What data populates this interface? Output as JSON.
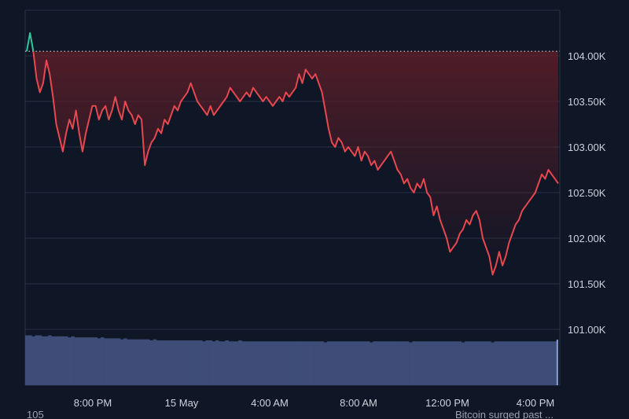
{
  "chart_data": {
    "type": "area",
    "title": "",
    "xlabel": "",
    "ylabel": "",
    "x_ticks": [
      "8:00 PM",
      "15 May",
      "4:00 AM",
      "8:00 AM",
      "12:00 PM",
      "4:00 PM"
    ],
    "y_ticks": [
      "101.00K",
      "101.50K",
      "102.00K",
      "102.50K",
      "103.00K",
      "103.50K",
      "104.00K"
    ],
    "ylim": [
      100500,
      104500
    ],
    "baseline": 104050,
    "series": [
      {
        "values": [
          104050,
          104250,
          104050,
          103750,
          103600,
          103700,
          103950,
          103800,
          103550,
          103250,
          103100,
          102950,
          103150,
          103300,
          103200,
          103400,
          103150,
          102950,
          103150,
          103300,
          103450,
          103450,
          103300,
          103400,
          103450,
          103300,
          103400,
          103550,
          103400,
          103300,
          103500,
          103400,
          103350,
          103250,
          103350,
          103300,
          102800,
          102950,
          103050,
          103100,
          103200,
          103150,
          103300,
          103250,
          103350,
          103450,
          103400,
          103500,
          103550,
          103600,
          103700,
          103600,
          103500,
          103450,
          103400,
          103350,
          103450,
          103350,
          103400,
          103450,
          103500,
          103550,
          103650,
          103600,
          103550,
          103500,
          103550,
          103600,
          103550,
          103650,
          103600,
          103550,
          103500,
          103550,
          103500,
          103450,
          103500,
          103550,
          103500,
          103600,
          103550,
          103600,
          103650,
          103800,
          103700,
          103850,
          103800,
          103750,
          103800,
          103700,
          103600,
          103400,
          103200,
          103050,
          103000,
          103100,
          103050,
          102950,
          103000,
          102950,
          102900,
          103000,
          102850,
          102950,
          102900,
          102800,
          102850,
          102750,
          102800,
          102850,
          102900,
          102950,
          102850,
          102750,
          102700,
          102600,
          102650,
          102550,
          102500,
          102600,
          102550,
          102650,
          102500,
          102450,
          102250,
          102350,
          102200,
          102100,
          102000,
          101850,
          101900,
          101950,
          102050,
          102100,
          102200,
          102150,
          102250,
          102300,
          102200,
          102000,
          101900,
          101800,
          101600,
          101700,
          101850,
          101700,
          101800,
          101950,
          102050,
          102150,
          102200,
          102300,
          102350,
          102400,
          102450,
          102500,
          102600,
          102700,
          102650,
          102750,
          102700,
          102650,
          102600
        ]
      }
    ],
    "volume": [
      0.48,
      0.48,
      0.47,
      0.48,
      0.48,
      0.47,
      0.47,
      0.48,
      0.47,
      0.47,
      0.47,
      0.47,
      0.47,
      0.46,
      0.47,
      0.46,
      0.46,
      0.46,
      0.46,
      0.46,
      0.46,
      0.46,
      0.45,
      0.46,
      0.45,
      0.45,
      0.45,
      0.45,
      0.45,
      0.44,
      0.45,
      0.44,
      0.44,
      0.44,
      0.44,
      0.44,
      0.44,
      0.44,
      0.43,
      0.44,
      0.43,
      0.43,
      0.43,
      0.43,
      0.43,
      0.43,
      0.43,
      0.43,
      0.43,
      0.43,
      0.43,
      0.43,
      0.43,
      0.43,
      0.42,
      0.43,
      0.43,
      0.42,
      0.43,
      0.42,
      0.42,
      0.43,
      0.42,
      0.42,
      0.42,
      0.43,
      0.42,
      0.42,
      0.42,
      0.42,
      0.42,
      0.42,
      0.42,
      0.42,
      0.42,
      0.42,
      0.42,
      0.42,
      0.42,
      0.42,
      0.42,
      0.42,
      0.42,
      0.42,
      0.42,
      0.42,
      0.42,
      0.42,
      0.42,
      0.42,
      0.42,
      0.41,
      0.42,
      0.42,
      0.42,
      0.42,
      0.42,
      0.42,
      0.42,
      0.42,
      0.42,
      0.42,
      0.42,
      0.42,
      0.42,
      0.41,
      0.42,
      0.42,
      0.42,
      0.42,
      0.42,
      0.42,
      0.42,
      0.42,
      0.42,
      0.42,
      0.42,
      0.41,
      0.42,
      0.42,
      0.42,
      0.42,
      0.42,
      0.42,
      0.42,
      0.42,
      0.42,
      0.42,
      0.42,
      0.42,
      0.42,
      0.42,
      0.42,
      0.41,
      0.42,
      0.42,
      0.42,
      0.42,
      0.42,
      0.42,
      0.42,
      0.42,
      0.41,
      0.42,
      0.42,
      0.42,
      0.42,
      0.42,
      0.42,
      0.42,
      0.42,
      0.42,
      0.42,
      0.42,
      0.42,
      0.42,
      0.42,
      0.42,
      0.42,
      0.42,
      0.42,
      0.42,
      0.98
    ],
    "colors": {
      "background": "#0f1626",
      "line_down": "#e8474f",
      "line_up": "#2ec89a",
      "fill_top": "#5a1e28",
      "volume": "#3e4d77",
      "volume_last": "#8aa0d8",
      "grid": "#2a3344",
      "baseline": "#c9ced6"
    },
    "grid": true,
    "footer_left": "105",
    "footer_right": "Bitcoin surged past ..."
  }
}
